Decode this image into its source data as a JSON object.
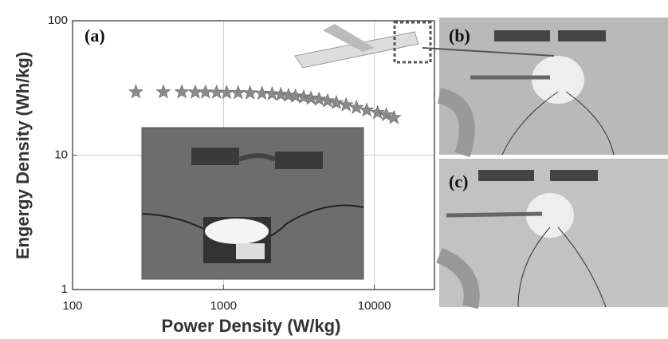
{
  "chart_data": {
    "type": "scatter",
    "x_label": "Power Density (W/kg)",
    "y_label": "Engergy Density (Wh/kg)",
    "annotation": "(a)",
    "panels": [
      "(b)",
      "(c)"
    ],
    "log_x": true,
    "log_y": true,
    "grid": true,
    "xlim": [
      100,
      25000
    ],
    "ylim": [
      1,
      100
    ],
    "xticks": [
      100,
      1000,
      10000
    ],
    "yticks": [
      1,
      10,
      100
    ],
    "series": [
      {
        "color": "#8a8a8a",
        "x": [
          263,
          400,
          530,
          650,
          760,
          900,
          1050,
          1250,
          1500,
          1800,
          2100,
          2400,
          2700,
          3000,
          3400,
          3800,
          4300,
          4900,
          5600,
          6500,
          7600,
          8900,
          10500,
          12000,
          13500
        ],
        "values": [
          29.5,
          29.5,
          29.5,
          29.4,
          29.4,
          29.3,
          29.2,
          29.1,
          29,
          28.8,
          28.5,
          28.2,
          27.8,
          27.4,
          27,
          26.5,
          26,
          25.3,
          24.5,
          23.6,
          22.6,
          21.6,
          20.7,
          19.9,
          19
        ]
      }
    ]
  }
}
